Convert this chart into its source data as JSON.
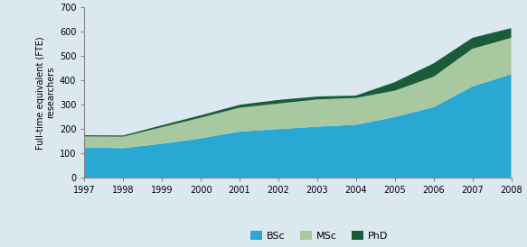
{
  "years": [
    1997,
    1998,
    1999,
    2000,
    2001,
    2002,
    2003,
    2004,
    2005,
    2006,
    2007,
    2008
  ],
  "bsc": [
    125,
    122,
    140,
    162,
    190,
    200,
    210,
    218,
    250,
    290,
    375,
    425
  ],
  "msc": [
    45,
    47,
    68,
    85,
    98,
    105,
    112,
    110,
    108,
    125,
    155,
    150
  ],
  "phd": [
    5,
    5,
    8,
    10,
    12,
    15,
    12,
    10,
    35,
    55,
    45,
    40
  ],
  "bsc_color": "#29a8d4",
  "msc_color": "#a8c8a0",
  "phd_color": "#1a5c3a",
  "background_color": "#dce8f0",
  "ylabel_line1": "Full-time equivalent (FTE)",
  "ylabel_line2": "researchers",
  "ylim": [
    0,
    700
  ],
  "yticks": [
    0,
    100,
    200,
    300,
    400,
    500,
    600,
    700
  ],
  "legend_labels": [
    "BSc",
    "MSc",
    "PhD"
  ]
}
